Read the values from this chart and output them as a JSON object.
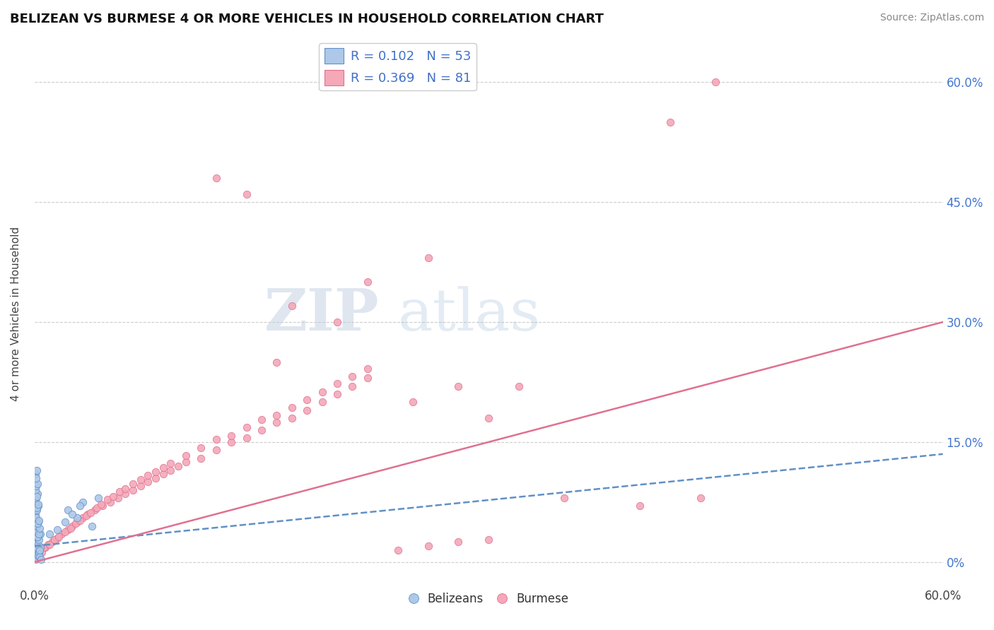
{
  "title": "BELIZEAN VS BURMESE 4 OR MORE VEHICLES IN HOUSEHOLD CORRELATION CHART",
  "source_text": "Source: ZipAtlas.com",
  "ylabel": "4 or more Vehicles in Household",
  "xlim": [
    0.0,
    0.6
  ],
  "ylim": [
    -0.03,
    0.65
  ],
  "color_belizean_fill": "#adc8e8",
  "color_belizean_edge": "#6090c8",
  "color_burmese_fill": "#f4a8b8",
  "color_burmese_edge": "#e07090",
  "color_trend_belizean": "#6090c8",
  "color_trend_burmese": "#e07090",
  "color_legend_text": "#4070c8",
  "background_color": "#ffffff",
  "grid_color": "#cccccc",
  "belizean_x": [
    0.0005,
    0.001,
    0.0015,
    0.002,
    0.0025,
    0.003,
    0.0035,
    0.004,
    0.0045,
    0.0005,
    0.001,
    0.0015,
    0.002,
    0.0025,
    0.003,
    0.0035,
    0.004,
    0.0005,
    0.001,
    0.0015,
    0.002,
    0.0025,
    0.003,
    0.0035,
    0.0005,
    0.001,
    0.0015,
    0.002,
    0.0025,
    0.003,
    0.0005,
    0.001,
    0.0015,
    0.002,
    0.0025,
    0.0005,
    0.001,
    0.0015,
    0.002,
    0.0005,
    0.001,
    0.0015,
    0.022,
    0.028,
    0.032,
    0.038,
    0.042,
    0.02,
    0.03,
    0.025,
    0.015,
    0.01
  ],
  "belizean_y": [
    0.005,
    0.01,
    0.005,
    0.015,
    0.008,
    0.012,
    0.007,
    0.018,
    0.003,
    0.02,
    0.025,
    0.018,
    0.03,
    0.022,
    0.028,
    0.015,
    0.035,
    0.04,
    0.038,
    0.045,
    0.032,
    0.05,
    0.035,
    0.042,
    0.06,
    0.055,
    0.065,
    0.048,
    0.07,
    0.052,
    0.075,
    0.08,
    0.068,
    0.085,
    0.072,
    0.09,
    0.095,
    0.082,
    0.098,
    0.11,
    0.105,
    0.115,
    0.065,
    0.055,
    0.075,
    0.045,
    0.08,
    0.05,
    0.07,
    0.06,
    0.04,
    0.035
  ],
  "burmese_x": [
    0.0005,
    0.001,
    0.002,
    0.003,
    0.005,
    0.007,
    0.009,
    0.012,
    0.015,
    0.018,
    0.022,
    0.025,
    0.028,
    0.032,
    0.035,
    0.04,
    0.045,
    0.05,
    0.055,
    0.06,
    0.065,
    0.07,
    0.075,
    0.08,
    0.085,
    0.09,
    0.095,
    0.1,
    0.11,
    0.12,
    0.13,
    0.14,
    0.15,
    0.16,
    0.17,
    0.18,
    0.19,
    0.2,
    0.21,
    0.22,
    0.001,
    0.003,
    0.006,
    0.01,
    0.013,
    0.016,
    0.02,
    0.024,
    0.027,
    0.03,
    0.034,
    0.037,
    0.041,
    0.044,
    0.048,
    0.052,
    0.056,
    0.06,
    0.065,
    0.07,
    0.075,
    0.08,
    0.085,
    0.09,
    0.1,
    0.11,
    0.12,
    0.13,
    0.14,
    0.15,
    0.16,
    0.17,
    0.18,
    0.19,
    0.2,
    0.21,
    0.22,
    0.24,
    0.26,
    0.28,
    0.3
  ],
  "burmese_y": [
    0.005,
    0.01,
    0.008,
    0.015,
    0.012,
    0.018,
    0.022,
    0.025,
    0.03,
    0.035,
    0.04,
    0.045,
    0.05,
    0.055,
    0.06,
    0.065,
    0.07,
    0.075,
    0.08,
    0.085,
    0.09,
    0.095,
    0.1,
    0.105,
    0.11,
    0.115,
    0.12,
    0.125,
    0.13,
    0.14,
    0.15,
    0.155,
    0.165,
    0.175,
    0.18,
    0.19,
    0.2,
    0.21,
    0.22,
    0.23,
    0.003,
    0.012,
    0.018,
    0.022,
    0.028,
    0.032,
    0.038,
    0.042,
    0.048,
    0.052,
    0.058,
    0.062,
    0.068,
    0.072,
    0.078,
    0.082,
    0.088,
    0.092,
    0.098,
    0.103,
    0.108,
    0.113,
    0.118,
    0.123,
    0.133,
    0.143,
    0.153,
    0.158,
    0.168,
    0.178,
    0.183,
    0.193,
    0.203,
    0.213,
    0.223,
    0.232,
    0.242,
    0.015,
    0.02,
    0.025,
    0.028
  ],
  "burmese_outlier_x": [
    0.17,
    0.2,
    0.22,
    0.26,
    0.35,
    0.42,
    0.45
  ],
  "burmese_outlier_y": [
    0.32,
    0.3,
    0.35,
    0.38,
    0.08,
    0.55,
    0.6
  ],
  "burmese_extra_x": [
    0.12,
    0.14,
    0.16,
    0.25,
    0.28,
    0.3,
    0.32,
    0.4,
    0.44
  ],
  "burmese_extra_y": [
    0.48,
    0.46,
    0.25,
    0.2,
    0.22,
    0.18,
    0.22,
    0.07,
    0.08
  ],
  "trend_bel_x0": 0.0,
  "trend_bel_y0": 0.02,
  "trend_bel_x1": 0.6,
  "trend_bel_y1": 0.135,
  "trend_bur_x0": 0.0,
  "trend_bur_y0": 0.0,
  "trend_bur_x1": 0.6,
  "trend_bur_y1": 0.3
}
